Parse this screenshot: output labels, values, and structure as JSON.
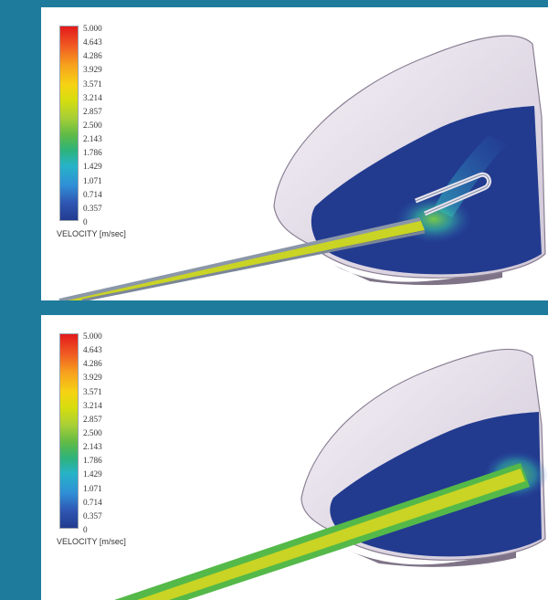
{
  "panels": [
    {
      "legend": {
        "ticks": [
          "5.000",
          "4.643",
          "4.286",
          "3.929",
          "3.571",
          "3.214",
          "2.857",
          "2.500",
          "2.143",
          "1.786",
          "1.429",
          "1.071",
          "0.714",
          "0.357",
          "0"
        ],
        "unit_label": "VELOCITY [m/sec]"
      }
    },
    {
      "legend": {
        "ticks": [
          "5.000",
          "4.643",
          "4.286",
          "3.929",
          "3.571",
          "3.214",
          "2.857",
          "2.500",
          "2.143",
          "1.786",
          "1.429",
          "1.071",
          "0.714",
          "0.357",
          "0"
        ],
        "unit_label": "VELOCITY [m/sec]"
      }
    }
  ],
  "colors": {
    "background": "#1e7b9c",
    "fluid_low": "#223b8f",
    "fluid_mid": "#5fbb46",
    "fluid_high": "#e31a1c",
    "jet_core": "#c9d424",
    "hull_shell": "#ece6f0"
  },
  "icons": [
    "velocity-colorbar"
  ]
}
